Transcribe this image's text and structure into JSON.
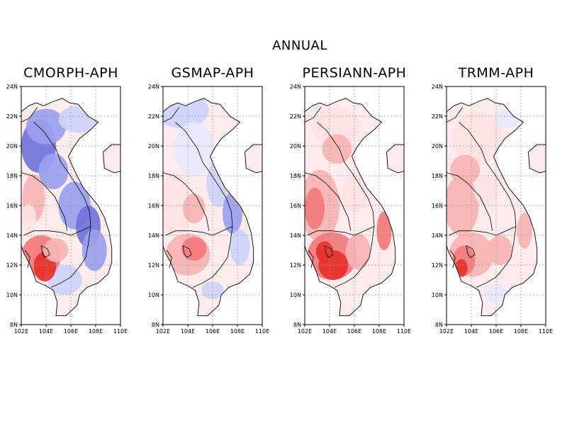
{
  "figure": {
    "title": "ANNUAL"
  },
  "axes": {
    "lat_ticks": [
      "8N",
      "10N",
      "12N",
      "14N",
      "16N",
      "18N",
      "20N",
      "22N",
      "24N"
    ],
    "lon_ticks": [
      "102E",
      "104E",
      "106E",
      "108E",
      "110E"
    ],
    "lat_range": [
      8,
      24
    ],
    "lon_range": [
      102,
      110
    ],
    "grid": "dotted"
  },
  "panels": [
    {
      "title": "CMORPH-APH",
      "bias": "negative-north-east, strong-positive-cambodia-west"
    },
    {
      "title": "GSMAP-APH",
      "bias": "mostly-negative-north, positive-cambodia"
    },
    {
      "title": "PERSIANN-APH",
      "bias": "strongly-positive"
    },
    {
      "title": "TRMM-APH",
      "bias": "mostly-positive"
    }
  ],
  "colors": {
    "strong_blue": "#6f73dc",
    "mid_blue": "#9aa0ee",
    "light_blue": "#cdd2fa",
    "pale_blue": "#e6e9fd",
    "pale_red": "#fde2e2",
    "light_red": "#f9b3b3",
    "mid_red": "#f27a7a",
    "strong_red": "#e8322c"
  }
}
